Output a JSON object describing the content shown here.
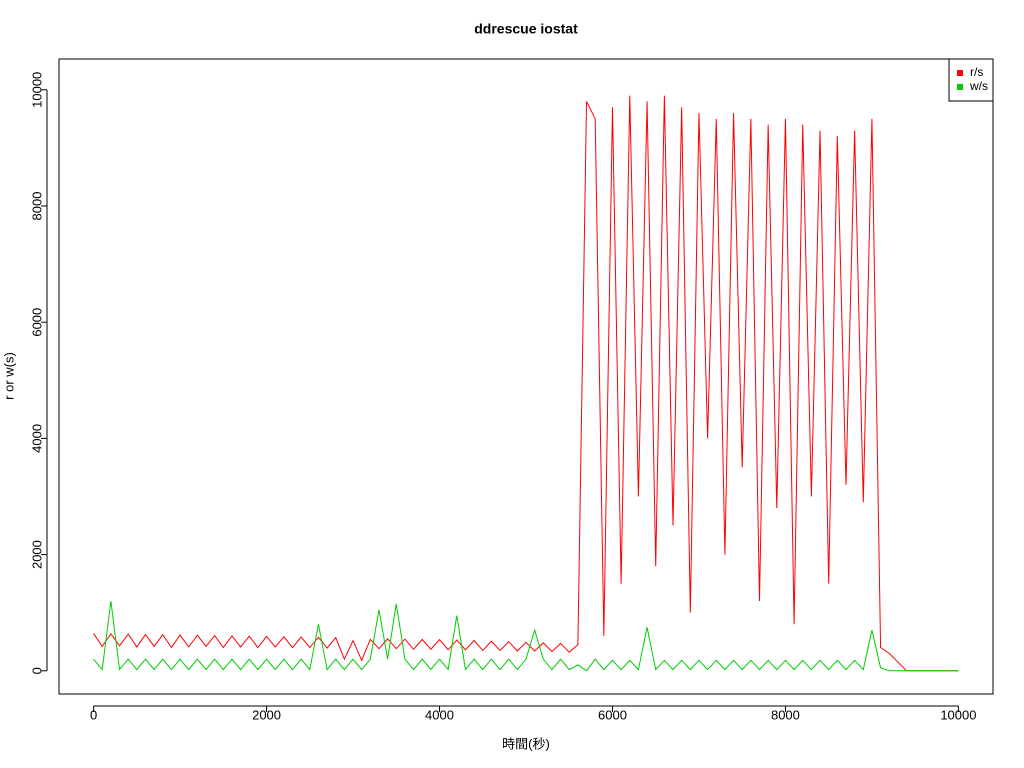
{
  "chart_data": {
    "type": "line",
    "title": "ddrescue iostat",
    "xlabel": "時間(秒)",
    "ylabel": "r or w(s)",
    "x": [
      0,
      100,
      200,
      300,
      400,
      500,
      600,
      700,
      800,
      900,
      1000,
      1100,
      1200,
      1300,
      1400,
      1500,
      1600,
      1700,
      1800,
      1900,
      2000,
      2100,
      2200,
      2300,
      2400,
      2500,
      2600,
      2700,
      2800,
      2900,
      3000,
      3100,
      3200,
      3300,
      3400,
      3500,
      3600,
      3700,
      3800,
      3900,
      4000,
      4100,
      4200,
      4300,
      4400,
      4500,
      4600,
      4700,
      4800,
      4900,
      5000,
      5100,
      5200,
      5300,
      5400,
      5500,
      5600,
      5700,
      5800,
      5900,
      6000,
      6100,
      6200,
      6300,
      6400,
      6500,
      6600,
      6700,
      6800,
      6900,
      7000,
      7100,
      7200,
      7300,
      7400,
      7500,
      7600,
      7700,
      7800,
      7900,
      8000,
      8100,
      8200,
      8300,
      8400,
      8500,
      8600,
      8700,
      8800,
      8900,
      9000,
      9100,
      9200,
      9300,
      9400,
      9500,
      9600,
      9700,
      9800,
      9900,
      10000
    ],
    "series": [
      {
        "name": "r/s",
        "color": "#ff0000",
        "values": [
          640,
          420,
          635,
          430,
          630,
          410,
          625,
          420,
          620,
          400,
          615,
          410,
          610,
          420,
          605,
          400,
          600,
          410,
          595,
          400,
          590,
          410,
          585,
          400,
          580,
          400,
          575,
          390,
          570,
          200,
          520,
          180,
          540,
          380,
          550,
          380,
          545,
          370,
          540,
          370,
          535,
          360,
          530,
          360,
          520,
          350,
          510,
          350,
          500,
          340,
          490,
          340,
          480,
          330,
          470,
          320,
          450,
          9800,
          9500,
          600,
          9700,
          1500,
          9900,
          3000,
          9800,
          1800,
          9900,
          2500,
          9700,
          1000,
          9600,
          4000,
          9500,
          2000,
          9600,
          3500,
          9500,
          1200,
          9400,
          2800,
          9500,
          800,
          9400,
          3000,
          9300,
          1500,
          9200,
          3200,
          9300,
          2900,
          9500,
          400,
          300,
          150,
          0,
          0,
          0,
          0,
          0,
          0,
          0
        ]
      },
      {
        "name": "w/s",
        "color": "#00cd00",
        "values": [
          200,
          20,
          1200,
          20,
          200,
          20,
          200,
          20,
          200,
          20,
          200,
          20,
          200,
          20,
          200,
          20,
          200,
          20,
          200,
          20,
          200,
          20,
          200,
          20,
          200,
          20,
          800,
          20,
          200,
          20,
          200,
          20,
          200,
          1050,
          200,
          1150,
          200,
          20,
          200,
          20,
          200,
          20,
          950,
          20,
          200,
          20,
          200,
          20,
          200,
          20,
          200,
          700,
          200,
          20,
          200,
          20,
          100,
          0,
          200,
          20,
          180,
          20,
          180,
          20,
          750,
          20,
          180,
          20,
          180,
          20,
          180,
          20,
          180,
          20,
          180,
          20,
          180,
          20,
          180,
          20,
          180,
          20,
          180,
          20,
          180,
          20,
          180,
          20,
          180,
          20,
          700,
          50,
          0,
          0,
          0,
          0,
          0,
          0,
          0,
          0,
          0
        ]
      }
    ],
    "xlim": [
      -400,
      10400
    ],
    "ylim": [
      -400,
      10530
    ],
    "xticks": [
      0,
      2000,
      4000,
      6000,
      8000,
      10000
    ],
    "yticks": [
      0,
      2000,
      4000,
      6000,
      8000,
      10000
    ],
    "legend": "top-right"
  }
}
